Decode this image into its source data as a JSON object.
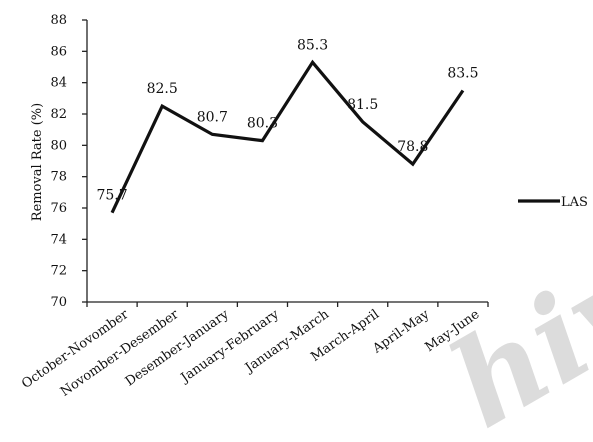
{
  "chart_data": {
    "type": "line",
    "categories": [
      "October-Novomber",
      "Novomber-Desember",
      "Desember-January",
      "January-February",
      "January-March",
      "March-April",
      "April-May",
      "May-June"
    ],
    "series": [
      {
        "name": "LAS",
        "values": [
          75.7,
          82.5,
          80.7,
          80.3,
          85.3,
          81.5,
          78.8,
          83.5
        ],
        "labels": [
          "75.7",
          "82.5",
          "80.7",
          "80.3",
          "85.3",
          "81.5",
          "78.8",
          "83.5"
        ],
        "color": "#111111"
      }
    ],
    "xlabel": "",
    "ylabel": "Removal Rate (%)",
    "ylim": [
      70,
      88
    ],
    "yticks": [
      70,
      72,
      74,
      76,
      78,
      80,
      82,
      84,
      86,
      88
    ],
    "ytick_labels": [
      "70",
      "72",
      "74",
      "76",
      "78",
      "80",
      "82",
      "84",
      "86",
      "88"
    ],
    "grid": false,
    "legend_position": "right"
  },
  "watermark": {
    "text": "hive"
  }
}
